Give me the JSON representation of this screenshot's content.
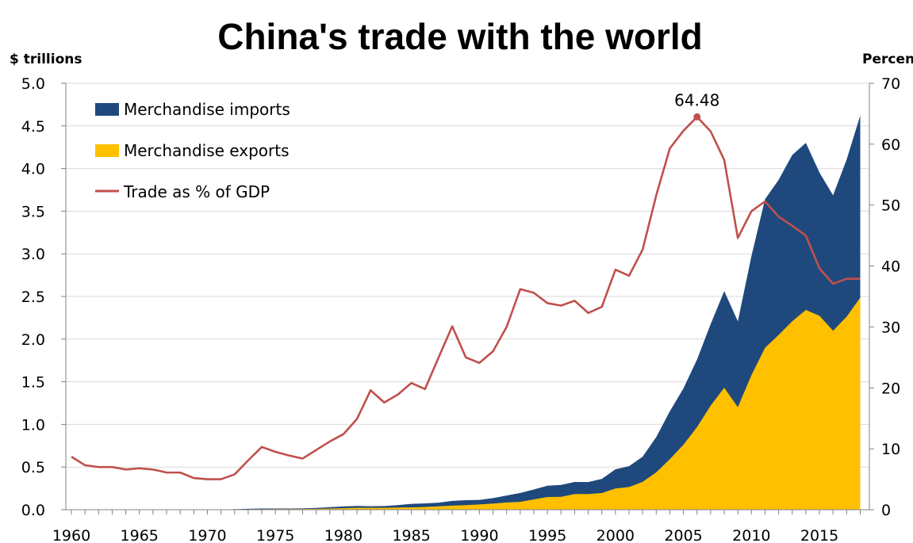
{
  "chart_data": {
    "type": "area",
    "title": "China's trade with the world",
    "ylabel_left": "$ trillions",
    "ylabel_right": "Percent",
    "ylim_left": [
      0,
      5
    ],
    "ylim_right": [
      0,
      70
    ],
    "left_ticks": [
      "0.0",
      "0.5",
      "1.0",
      "1.5",
      "2.0",
      "2.5",
      "3.0",
      "3.5",
      "4.0",
      "4.5",
      "5.0"
    ],
    "right_ticks": [
      "0",
      "10",
      "20",
      "30",
      "40",
      "50",
      "60",
      "70"
    ],
    "x_ticks": [
      "1960",
      "1965",
      "1970",
      "1975",
      "1980",
      "1985",
      "1990",
      "1995",
      "2000",
      "2005",
      "2010",
      "2015"
    ],
    "legend_position": "top-left",
    "x": [
      1960,
      1961,
      1962,
      1963,
      1964,
      1965,
      1966,
      1967,
      1968,
      1969,
      1970,
      1971,
      1972,
      1973,
      1974,
      1975,
      1976,
      1977,
      1978,
      1979,
      1980,
      1981,
      1982,
      1983,
      1984,
      1985,
      1986,
      1987,
      1988,
      1989,
      1990,
      1991,
      1992,
      1993,
      1994,
      1995,
      1996,
      1997,
      1998,
      1999,
      2000,
      2001,
      2002,
      2003,
      2004,
      2005,
      2006,
      2007,
      2008,
      2009,
      2010,
      2011,
      2012,
      2013,
      2014,
      2015,
      2016,
      2017,
      2018
    ],
    "series": [
      {
        "name": "Merchandise exports",
        "type": "area",
        "axis": "left",
        "color": "#FFC000",
        "values": [
          0.002,
          0.002,
          0.002,
          0.002,
          0.002,
          0.002,
          0.002,
          0.002,
          0.002,
          0.002,
          0.002,
          0.002,
          0.003,
          0.005,
          0.006,
          0.007,
          0.007,
          0.008,
          0.01,
          0.014,
          0.018,
          0.022,
          0.022,
          0.022,
          0.026,
          0.027,
          0.031,
          0.039,
          0.048,
          0.053,
          0.062,
          0.072,
          0.085,
          0.092,
          0.121,
          0.149,
          0.151,
          0.183,
          0.184,
          0.195,
          0.249,
          0.266,
          0.326,
          0.438,
          0.593,
          0.762,
          0.969,
          1.22,
          1.43,
          1.202,
          1.578,
          1.898,
          2.049,
          2.209,
          2.342,
          2.273,
          2.098,
          2.263,
          2.487
        ]
      },
      {
        "name": "Merchandise imports",
        "type": "area",
        "axis": "left",
        "color": "#1F497D",
        "values": [
          0.002,
          0.002,
          0.002,
          0.002,
          0.002,
          0.002,
          0.002,
          0.002,
          0.002,
          0.002,
          0.002,
          0.002,
          0.003,
          0.005,
          0.008,
          0.007,
          0.007,
          0.007,
          0.011,
          0.016,
          0.02,
          0.022,
          0.019,
          0.021,
          0.027,
          0.042,
          0.043,
          0.043,
          0.055,
          0.059,
          0.053,
          0.064,
          0.081,
          0.104,
          0.116,
          0.132,
          0.139,
          0.142,
          0.14,
          0.166,
          0.225,
          0.244,
          0.295,
          0.413,
          0.561,
          0.66,
          0.792,
          0.956,
          1.133,
          1.006,
          1.396,
          1.743,
          1.818,
          1.95,
          1.959,
          1.68,
          1.588,
          1.842,
          2.136
        ]
      },
      {
        "name": "Trade as % of GDP",
        "type": "line",
        "axis": "right",
        "color": "#C0504D",
        "values": [
          8.7,
          7.3,
          7.0,
          7.0,
          6.6,
          6.8,
          6.6,
          6.1,
          6.1,
          5.2,
          5.0,
          5.0,
          5.8,
          8.1,
          10.3,
          9.5,
          8.9,
          8.4,
          9.8,
          11.2,
          12.4,
          14.9,
          19.6,
          17.6,
          18.9,
          20.8,
          19.8,
          25.0,
          30.1,
          25.0,
          24.1,
          26.0,
          30.0,
          36.2,
          35.6,
          33.9,
          33.5,
          34.3,
          32.3,
          33.3,
          39.4,
          38.4,
          42.7,
          51.6,
          59.3,
          62.2,
          64.48,
          62.1,
          57.4,
          44.6,
          49.0,
          50.6,
          48.1,
          46.6,
          45.0,
          39.6,
          37.1,
          37.9,
          37.9
        ]
      }
    ],
    "annotations": [
      {
        "x": 2006,
        "axis": "right",
        "value": 64.48,
        "label": "64.48"
      }
    ]
  },
  "legend": {
    "imports_label": "Merchandise imports",
    "exports_label": "Merchandise exports",
    "gdp_label": "Trade as % of GDP"
  }
}
